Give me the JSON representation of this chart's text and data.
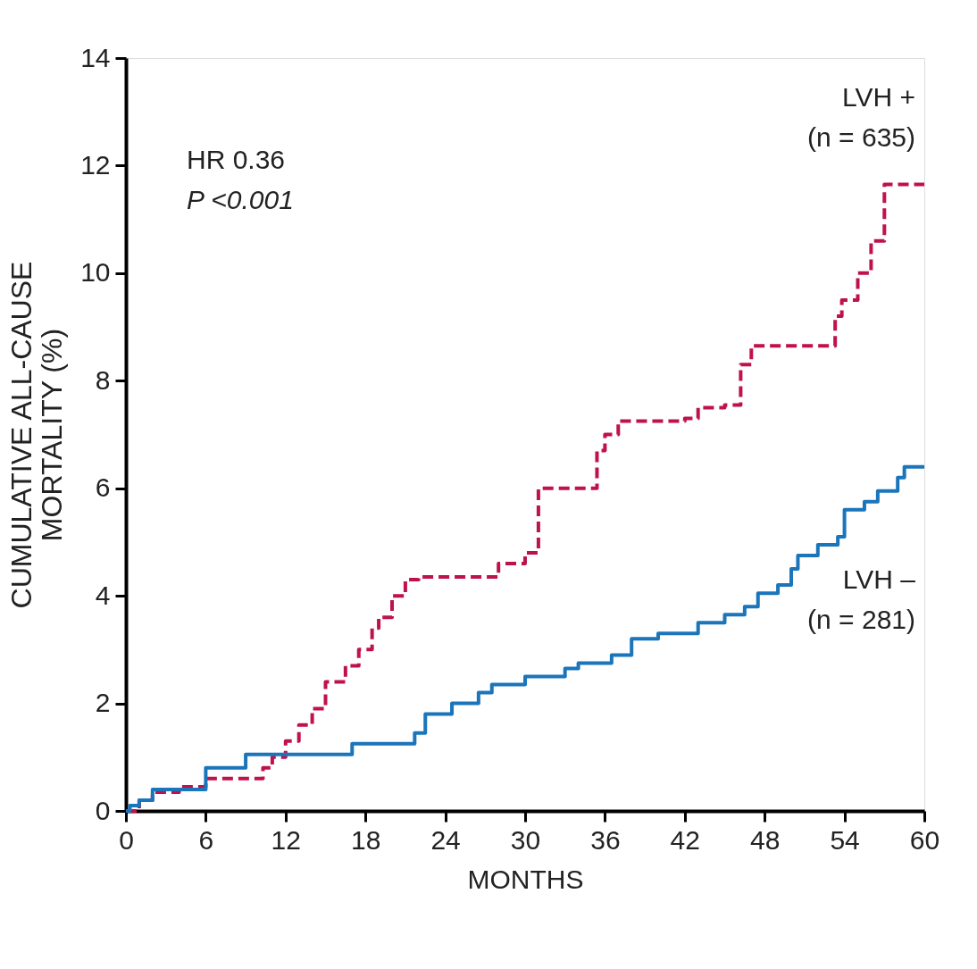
{
  "chart_data": {
    "type": "step",
    "xlabel": "MONTHS",
    "ylabel": "CUMULATIVE ALL-CAUSE MORTALITY (%)",
    "xlim": [
      0,
      60
    ],
    "xticks": [
      0,
      6,
      12,
      18,
      24,
      30,
      36,
      42,
      48,
      54,
      60
    ],
    "ylim": [
      0,
      14
    ],
    "yticks": [
      0,
      2,
      4,
      6,
      8,
      10,
      12,
      14
    ],
    "grid": false,
    "marker": "none",
    "annotations": [
      "HR 0.36",
      "P <0.001",
      "(n = 635)",
      "(n = 281)"
    ],
    "series": [
      {
        "name": "LVH +",
        "color": "#c0124a",
        "line_style": "dashed",
        "x": [
          0,
          1,
          2,
          4,
          6,
          10.3,
          11,
          12,
          13,
          14,
          15,
          16.5,
          17.5,
          18.5,
          19,
          20,
          21,
          22,
          28,
          30,
          31,
          35.4,
          36,
          37,
          42,
          43,
          45,
          46.2,
          47,
          53.3,
          53.8,
          55,
          56,
          57,
          60
        ],
        "values": [
          0,
          0.2,
          0.35,
          0.45,
          0.6,
          0.8,
          1.0,
          1.3,
          1.6,
          1.9,
          2.4,
          2.7,
          3.0,
          3.4,
          3.6,
          4.0,
          4.3,
          4.35,
          4.6,
          4.8,
          6.0,
          6.7,
          7.0,
          7.25,
          7.3,
          7.5,
          7.55,
          8.3,
          8.65,
          9.2,
          9.5,
          10.0,
          10.6,
          11.65,
          11.65
        ]
      },
      {
        "name": "LVH –",
        "color": "#1a75bb",
        "line_style": "solid",
        "x": [
          0,
          0.3,
          1,
          2,
          6,
          9,
          17,
          21.7,
          22.5,
          24.5,
          26.5,
          27.5,
          30,
          33,
          34,
          36.5,
          38,
          40,
          43,
          45,
          46.5,
          47.5,
          49,
          50,
          50.5,
          52,
          53.5,
          54,
          55.5,
          56.5,
          58,
          58.5,
          60
        ],
        "values": [
          0,
          0.1,
          0.2,
          0.4,
          0.8,
          1.05,
          1.25,
          1.45,
          1.8,
          2.0,
          2.2,
          2.35,
          2.5,
          2.65,
          2.75,
          2.9,
          3.2,
          3.3,
          3.5,
          3.65,
          3.8,
          4.05,
          4.2,
          4.5,
          4.75,
          4.95,
          5.1,
          5.6,
          5.75,
          5.95,
          6.2,
          6.4,
          6.4
        ]
      }
    ]
  }
}
